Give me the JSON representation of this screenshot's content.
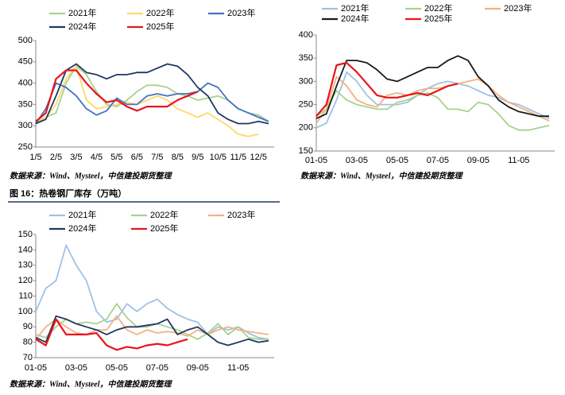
{
  "chart_data": [
    {
      "type": "line",
      "categories": [
        "1/5",
        null,
        "2/5",
        null,
        "3/5",
        null,
        "4/5",
        null,
        "5/5",
        null,
        "6/5",
        null,
        "7/5",
        null,
        "8/5",
        null,
        "9/5",
        null,
        "10/5",
        null,
        "11/5",
        null,
        "12/5",
        null
      ],
      "ylim": [
        250,
        500
      ],
      "yticks": [
        250,
        300,
        350,
        400,
        450,
        500
      ],
      "series": [
        {
          "name": "2021年",
          "color": "#a9d18e",
          "values": [
            305,
            320,
            330,
            400,
            440,
            420,
            380,
            350,
            345,
            360,
            380,
            395,
            395,
            390,
            375,
            370,
            360,
            365,
            370,
            360,
            340,
            330,
            325,
            310
          ]
        },
        {
          "name": "2022年",
          "color": "#ffd966",
          "values": [
            310,
            320,
            350,
            410,
            440,
            360,
            340,
            345,
            350,
            355,
            350,
            360,
            370,
            360,
            340,
            330,
            320,
            330,
            315,
            300,
            280,
            275,
            280,
            null
          ]
        },
        {
          "name": "2023年",
          "color": "#4472c4",
          "values": [
            305,
            340,
            400,
            390,
            370,
            340,
            325,
            335,
            365,
            350,
            350,
            370,
            375,
            370,
            375,
            375,
            380,
            400,
            390,
            360,
            340,
            330,
            320,
            310
          ]
        },
        {
          "name": "2024年",
          "color": "#1f3864",
          "values": [
            305,
            315,
            370,
            430,
            445,
            425,
            420,
            410,
            420,
            420,
            425,
            425,
            435,
            445,
            440,
            420,
            390,
            370,
            330,
            315,
            305,
            305,
            310,
            305
          ]
        },
        {
          "name": "2025年",
          "color": "#e8141b",
          "values": [
            310,
            330,
            410,
            430,
            430,
            400,
            375,
            355,
            360,
            345,
            335,
            345,
            345,
            345,
            360,
            370,
            380,
            null,
            null,
            null,
            null,
            null,
            null,
            null
          ]
        }
      ]
    },
    {
      "type": "line",
      "categories": [
        "01-05",
        null,
        null,
        null,
        "03-05",
        null,
        null,
        null,
        "05-05",
        null,
        null,
        null,
        "07-05",
        null,
        null,
        null,
        "09-05",
        null,
        null,
        null,
        "11-05",
        null,
        null,
        null
      ],
      "ylim": [
        150,
        400
      ],
      "yticks": [
        150,
        200,
        250,
        300,
        350,
        400
      ],
      "series": [
        {
          "name": "2021年",
          "color": "#9dc3e6",
          "values": [
            200,
            210,
            260,
            320,
            300,
            270,
            250,
            250,
            250,
            255,
            270,
            285,
            295,
            300,
            295,
            290,
            280,
            270,
            265,
            255,
            250,
            240,
            230,
            220
          ]
        },
        {
          "name": "2022年",
          "color": "#a9d18e",
          "values": [
            225,
            240,
            280,
            260,
            250,
            245,
            240,
            240,
            255,
            260,
            270,
            275,
            265,
            240,
            240,
            235,
            255,
            250,
            230,
            205,
            195,
            195,
            200,
            205
          ]
        },
        {
          "name": "2023年",
          "color": "#f4b183",
          "values": [
            210,
            240,
            310,
            290,
            260,
            250,
            245,
            270,
            275,
            270,
            280,
            285,
            285,
            290,
            295,
            300,
            305,
            290,
            270,
            255,
            245,
            235,
            225,
            215
          ]
        },
        {
          "name": "2024年",
          "color": "#1a1a1a",
          "values": [
            220,
            230,
            290,
            345,
            345,
            340,
            325,
            305,
            300,
            310,
            320,
            330,
            330,
            345,
            355,
            345,
            310,
            290,
            260,
            245,
            235,
            230,
            225,
            225
          ]
        },
        {
          "name": "2025年",
          "color": "#e8141b",
          "values": [
            225,
            250,
            335,
            340,
            320,
            295,
            270,
            265,
            265,
            270,
            275,
            270,
            280,
            290,
            295,
            null,
            null,
            null,
            null,
            null,
            null,
            null,
            null,
            null
          ]
        }
      ]
    },
    {
      "type": "line",
      "categories": [
        "01-05",
        null,
        null,
        null,
        "03-05",
        null,
        null,
        null,
        "05-05",
        null,
        null,
        null,
        "07-05",
        null,
        null,
        null,
        "09-05",
        null,
        null,
        null,
        "11-05",
        null,
        null,
        null
      ],
      "ylim": [
        70,
        150
      ],
      "yticks": [
        70,
        80,
        90,
        100,
        110,
        120,
        130,
        140,
        150
      ],
      "series": [
        {
          "name": "2021年",
          "color": "#9dc3e6",
          "values": [
            100,
            115,
            120,
            143,
            130,
            120,
            100,
            93,
            95,
            105,
            100,
            105,
            108,
            102,
            98,
            95,
            93,
            85,
            90,
            88,
            90,
            86,
            83,
            82
          ]
        },
        {
          "name": "2022年",
          "color": "#a9d18e",
          "values": [
            85,
            83,
            90,
            95,
            92,
            93,
            92,
            95,
            105,
            96,
            90,
            90,
            92,
            90,
            88,
            85,
            82,
            86,
            92,
            85,
            90,
            83,
            82,
            82
          ]
        },
        {
          "name": "2023年",
          "color": "#f4b183",
          "values": [
            82,
            90,
            95,
            90,
            86,
            85,
            88,
            88,
            97,
            88,
            85,
            88,
            86,
            87,
            86,
            84,
            88,
            85,
            88,
            90,
            88,
            87,
            86,
            85
          ]
        },
        {
          "name": "2024年",
          "color": "#1f3864",
          "values": [
            83,
            80,
            97,
            95,
            92,
            90,
            88,
            85,
            88,
            90,
            90,
            91,
            92,
            95,
            85,
            88,
            90,
            85,
            80,
            78,
            80,
            82,
            80,
            81
          ]
        },
        {
          "name": "2025年",
          "color": "#e8141b",
          "values": [
            82,
            78,
            95,
            85,
            85,
            85,
            86,
            78,
            75,
            77,
            76,
            78,
            79,
            78,
            80,
            82,
            null,
            null,
            null,
            null,
            null,
            null,
            null,
            null
          ]
        }
      ]
    }
  ],
  "figure_title": "图 16：热卷钢厂库存（万吨）",
  "sources": [
    "数据来源：Wind、Mysteel，中信建投期货整理",
    "数据来源：Wind、Mysteel，中信建投期货整理",
    "数据来源：Wind、Mysteel，中信建投期货整理"
  ]
}
